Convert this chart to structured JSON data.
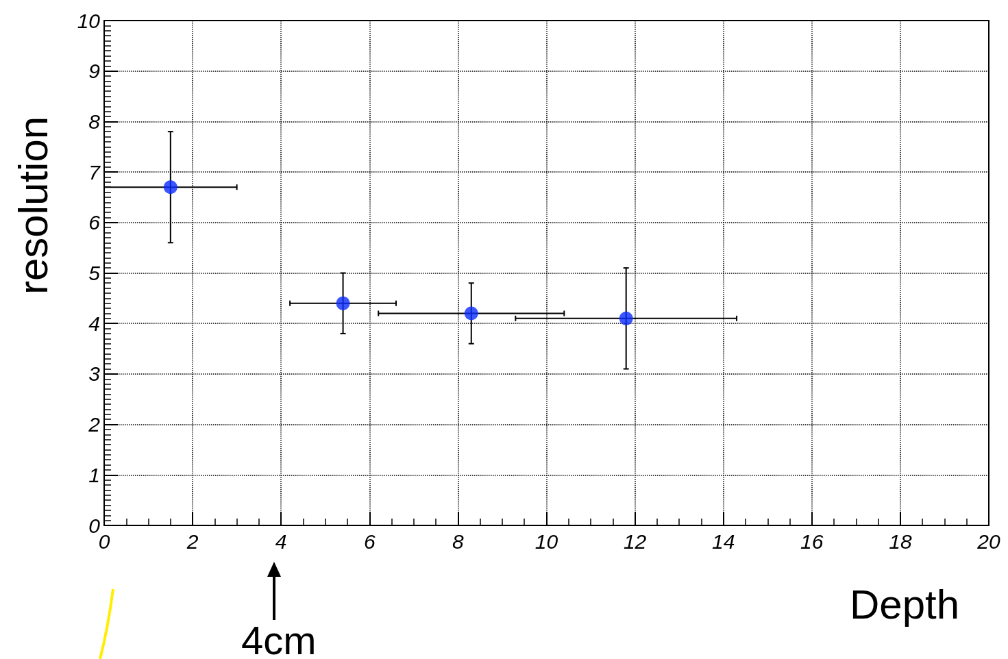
{
  "chart_data": {
    "type": "scatter",
    "xlabel": "Depth",
    "ylabel": "resolution",
    "x": [
      1.5,
      5.4,
      8.3,
      11.8
    ],
    "values": [
      6.7,
      4.4,
      4.2,
      4.1
    ],
    "errors": [
      1.1,
      0.6,
      0.6,
      1.0
    ],
    "xerrors": [
      1.5,
      1.2,
      2.1,
      2.5
    ],
    "color": "#0a2cff",
    "marker": "circle",
    "xlim": [
      0,
      20
    ],
    "xticks": [
      0,
      2,
      4,
      6,
      8,
      10,
      12,
      14,
      16,
      18,
      20
    ],
    "ylim": [
      0,
      10
    ],
    "yticks": [
      0,
      1,
      2,
      3,
      4,
      5,
      6,
      7,
      8,
      9,
      10
    ],
    "grid": true,
    "annotations": [
      "4cm"
    ]
  }
}
